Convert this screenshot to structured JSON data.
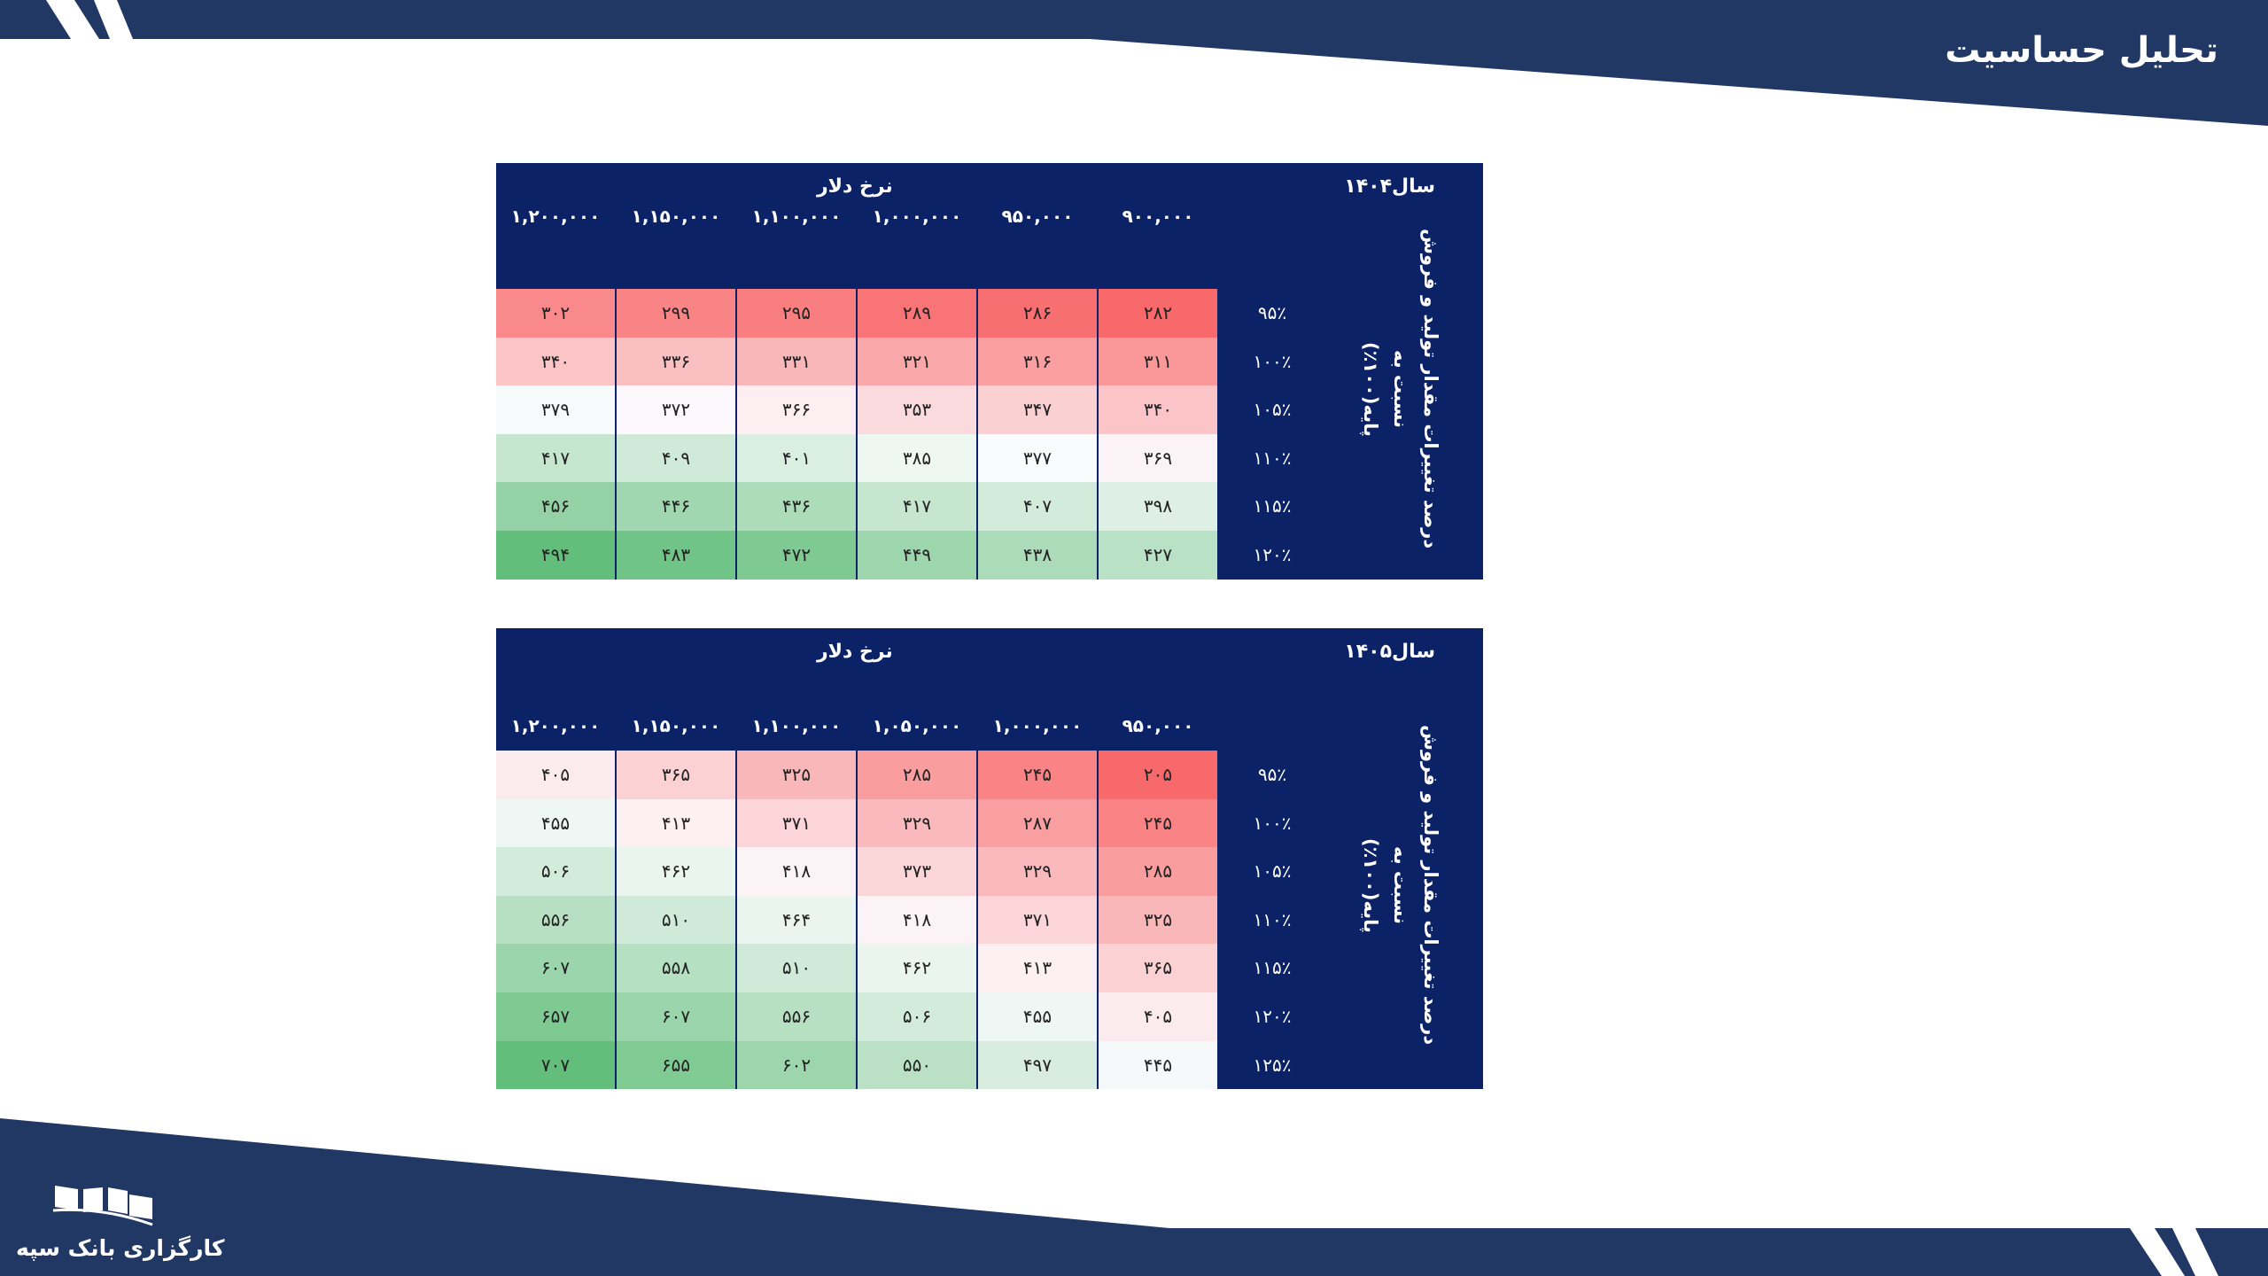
{
  "header": {
    "title": "تحلیل حساسیت"
  },
  "footer": {
    "brand": "کارگزاری بانک سپه"
  },
  "colors": {
    "navy": "#223864",
    "table_bg": "#0b2266",
    "low": "#f8696b",
    "mid": "#fcfcff",
    "high": "#63be7b"
  },
  "tables": [
    {
      "year_label": "سال۱۴۰۴",
      "rate_label": "نرخ دلار",
      "side_line1": "درصد تغییرات مقدار تولید و فروش نسبت به",
      "side_line2": "پایه(۱۰۰٪)",
      "columns": [
        "۱,۲۰۰,۰۰۰",
        "۱,۱۵۰,۰۰۰",
        "۱,۱۰۰,۰۰۰",
        "۱,۰۰۰,۰۰۰",
        "۹۵۰,۰۰۰",
        "۹۰۰,۰۰۰"
      ],
      "rows": [
        {
          "label": "۹۵٪",
          "cells": [
            "۳۰۲",
            "۲۹۹",
            "۲۹۵",
            "۲۸۹",
            "۲۸۶",
            "۲۸۲"
          ],
          "values": [
            302,
            299,
            295,
            289,
            286,
            282
          ]
        },
        {
          "label": "۱۰۰٪",
          "cells": [
            "۳۴۰",
            "۳۳۶",
            "۳۳۱",
            "۳۲۱",
            "۳۱۶",
            "۳۱۱"
          ],
          "values": [
            340,
            336,
            331,
            321,
            316,
            311
          ]
        },
        {
          "label": "۱۰۵٪",
          "cells": [
            "۳۷۹",
            "۳۷۲",
            "۳۶۶",
            "۳۵۳",
            "۳۴۷",
            "۳۴۰"
          ],
          "values": [
            379,
            372,
            366,
            353,
            347,
            340
          ]
        },
        {
          "label": "۱۱۰٪",
          "cells": [
            "۴۱۷",
            "۴۰۹",
            "۴۰۱",
            "۳۸۵",
            "۳۷۷",
            "۳۶۹"
          ],
          "values": [
            417,
            409,
            401,
            385,
            377,
            369
          ]
        },
        {
          "label": "۱۱۵٪",
          "cells": [
            "۴۵۶",
            "۴۴۶",
            "۴۳۶",
            "۴۱۷",
            "۴۰۷",
            "۳۹۸"
          ],
          "values": [
            456,
            446,
            436,
            417,
            407,
            398
          ]
        },
        {
          "label": "۱۲۰٪",
          "cells": [
            "۴۹۴",
            "۴۸۳",
            "۴۷۲",
            "۴۴۹",
            "۴۳۸",
            "۴۲۷"
          ],
          "values": [
            494,
            483,
            472,
            449,
            438,
            427
          ]
        }
      ]
    },
    {
      "year_label": "سال۱۴۰۵",
      "rate_label": "نرخ دلار",
      "side_line1": "درصد تغییرات مقدار تولید و فروش نسبت به",
      "side_line2": "پایه(۱۰۰٪)",
      "columns": [
        "۱,۲۰۰,۰۰۰",
        "۱,۱۵۰,۰۰۰",
        "۱,۱۰۰,۰۰۰",
        "۱,۰۵۰,۰۰۰",
        "۱,۰۰۰,۰۰۰",
        "۹۵۰,۰۰۰"
      ],
      "rows": [
        {
          "label": "۹۵٪",
          "cells": [
            "۴۰۵",
            "۳۶۵",
            "۳۲۵",
            "۲۸۵",
            "۲۴۵",
            "۲۰۵"
          ],
          "values": [
            405,
            365,
            325,
            285,
            245,
            205
          ]
        },
        {
          "label": "۱۰۰٪",
          "cells": [
            "۴۵۵",
            "۴۱۳",
            "۳۷۱",
            "۳۲۹",
            "۲۸۷",
            "۲۴۵"
          ],
          "values": [
            455,
            413,
            371,
            329,
            287,
            245
          ]
        },
        {
          "label": "۱۰۵٪",
          "cells": [
            "۵۰۶",
            "۴۶۲",
            "۴۱۸",
            "۳۷۳",
            "۳۲۹",
            "۲۸۵"
          ],
          "values": [
            506,
            462,
            418,
            373,
            329,
            285
          ]
        },
        {
          "label": "۱۱۰٪",
          "cells": [
            "۵۵۶",
            "۵۱۰",
            "۴۶۴",
            "۴۱۸",
            "۳۷۱",
            "۳۲۵"
          ],
          "values": [
            556,
            510,
            464,
            418,
            371,
            325
          ]
        },
        {
          "label": "۱۱۵٪",
          "cells": [
            "۶۰۷",
            "۵۵۸",
            "۵۱۰",
            "۴۶۲",
            "۴۱۳",
            "۳۶۵"
          ],
          "values": [
            607,
            558,
            510,
            462,
            413,
            365
          ]
        },
        {
          "label": "۱۲۰٪",
          "cells": [
            "۶۵۷",
            "۶۰۷",
            "۵۵۶",
            "۵۰۶",
            "۴۵۵",
            "۴۰۵"
          ],
          "values": [
            657,
            607,
            556,
            506,
            455,
            405
          ]
        },
        {
          "label": "۱۲۵٪",
          "cells": [
            "۷۰۷",
            "۶۵۵",
            "۶۰۲",
            "۵۵۰",
            "۴۹۷",
            "۴۴۵"
          ],
          "values": [
            707,
            655,
            602,
            550,
            497,
            445
          ]
        }
      ]
    }
  ]
}
